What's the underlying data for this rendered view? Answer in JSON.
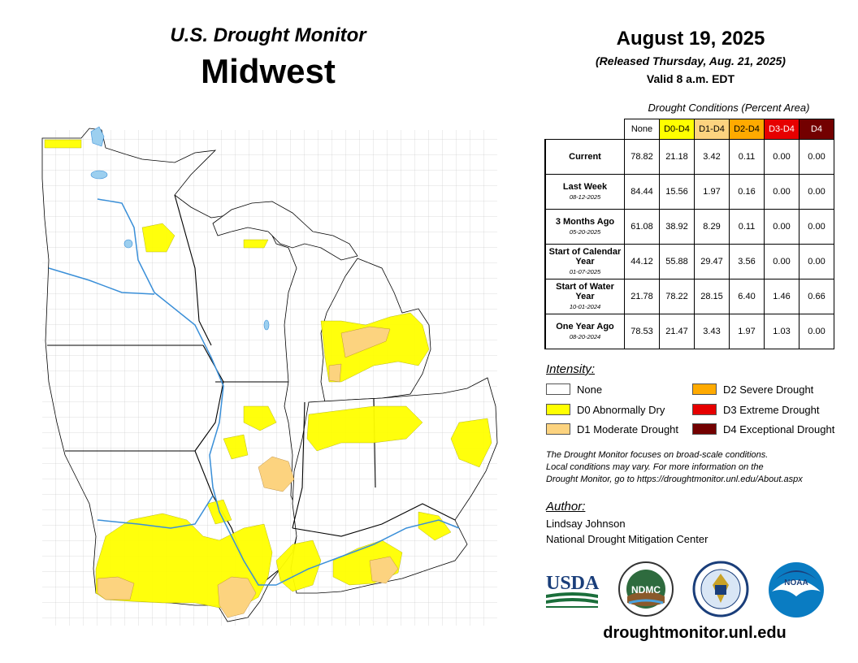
{
  "header": {
    "product": "U.S. Drought Monitor",
    "region": "Midwest",
    "date": "August 19, 2025",
    "released": "(Released Thursday, Aug. 21, 2025)",
    "valid": "Valid 8 a.m. EDT"
  },
  "conditions_table": {
    "caption": "Drought Conditions (Percent Area)",
    "columns": [
      {
        "label": "None",
        "bg": "#ffffff",
        "fg": "#000000"
      },
      {
        "label": "D0-D4",
        "bg": "#ffff00",
        "fg": "#000000"
      },
      {
        "label": "D1-D4",
        "bg": "#fcd37f",
        "fg": "#000000"
      },
      {
        "label": "D2-D4",
        "bg": "#ffaa00",
        "fg": "#000000"
      },
      {
        "label": "D3-D4",
        "bg": "#e60000",
        "fg": "#ffffff"
      },
      {
        "label": "D4",
        "bg": "#730000",
        "fg": "#ffffff"
      }
    ],
    "rows": [
      {
        "label": "Current",
        "date": "",
        "values": [
          "78.82",
          "21.18",
          "3.42",
          "0.11",
          "0.00",
          "0.00"
        ]
      },
      {
        "label": "Last Week",
        "date": "08-12-2025",
        "values": [
          "84.44",
          "15.56",
          "1.97",
          "0.16",
          "0.00",
          "0.00"
        ]
      },
      {
        "label": "3 Months Ago",
        "date": "05-20-2025",
        "values": [
          "61.08",
          "38.92",
          "8.29",
          "0.11",
          "0.00",
          "0.00"
        ]
      },
      {
        "label": "Start of Calendar Year",
        "date": "01-07-2025",
        "values": [
          "44.12",
          "55.88",
          "29.47",
          "3.56",
          "0.00",
          "0.00"
        ]
      },
      {
        "label": "Start of Water Year",
        "date": "10-01-2024",
        "values": [
          "21.78",
          "78.22",
          "28.15",
          "6.40",
          "1.46",
          "0.66"
        ]
      },
      {
        "label": "One Year Ago",
        "date": "08-20-2024",
        "values": [
          "78.53",
          "21.47",
          "3.43",
          "1.97",
          "1.03",
          "0.00"
        ]
      }
    ]
  },
  "legend": {
    "heading": "Intensity:",
    "items": [
      {
        "label": "None",
        "color": "#ffffff"
      },
      {
        "label": "D0 Abnormally Dry",
        "color": "#ffff00"
      },
      {
        "label": "D1 Moderate Drought",
        "color": "#fcd37f"
      },
      {
        "label": "D2 Severe Drought",
        "color": "#ffaa00"
      },
      {
        "label": "D3 Extreme Drought",
        "color": "#e60000"
      },
      {
        "label": "D4 Exceptional Drought",
        "color": "#730000"
      }
    ]
  },
  "disclaimer": {
    "line1": "The Drought Monitor focuses on broad-scale conditions.",
    "line2": "Local conditions may vary. For more information on the",
    "line3": "Drought Monitor, go to https://droughtmonitor.unl.edu/About.aspx"
  },
  "author": {
    "heading": "Author:",
    "name": "Lindsay Johnson",
    "organization": "National Drought Mitigation Center"
  },
  "logos": {
    "usda": "USDA",
    "ndmc": "NDMC",
    "noaa": "NOAA"
  },
  "website": "droughtmonitor.unl.edu",
  "colors": {
    "d0": "#ffff00",
    "d1": "#fcd37f",
    "water": "#9ccfef",
    "river": "#3a8fd8",
    "land": "#ffffff"
  }
}
